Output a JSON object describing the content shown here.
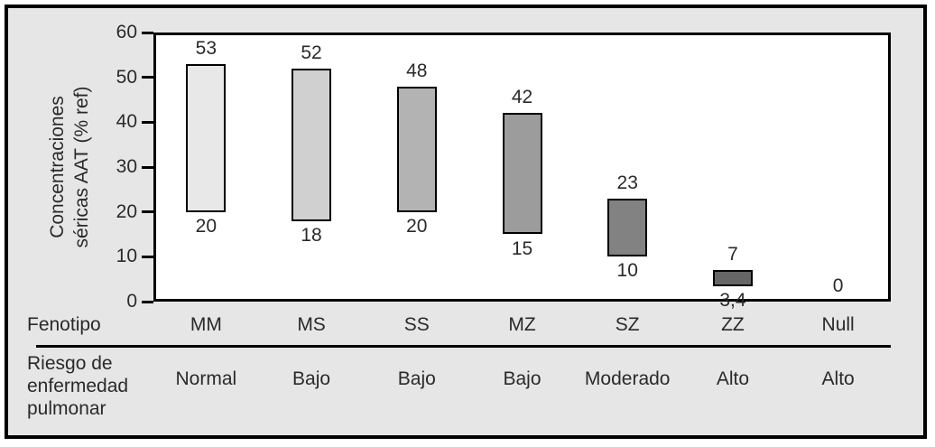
{
  "chart_data": {
    "type": "bar",
    "subtype": "floating_range_bars",
    "title": "",
    "ylabel": "Concentraciones séricas AAT (% ref)",
    "ylabel_lines": [
      "Concentraciones",
      "séricas AAT (% ref)"
    ],
    "ylim": [
      0,
      60
    ],
    "yticks": [
      "60",
      "50",
      "40",
      "30",
      "20",
      "10",
      "0"
    ],
    "grid": false,
    "legend": false,
    "categories": [
      "MM",
      "MS",
      "SS",
      "MZ",
      "SZ",
      "ZZ",
      "Null"
    ],
    "bars": [
      {
        "phenotype": "MM",
        "low": 20,
        "high": 53,
        "low_label": "20",
        "high_label": "53",
        "fill": "#e8e8e8",
        "risk": "Normal"
      },
      {
        "phenotype": "MS",
        "low": 18,
        "high": 52,
        "low_label": "18",
        "high_label": "52",
        "fill": "#d0d0d0",
        "risk": "Bajo"
      },
      {
        "phenotype": "SS",
        "low": 20,
        "high": 48,
        "low_label": "20",
        "high_label": "48",
        "fill": "#b3b3b3",
        "risk": "Bajo"
      },
      {
        "phenotype": "MZ",
        "low": 15,
        "high": 42,
        "low_label": "15",
        "high_label": "42",
        "fill": "#9c9c9c",
        "risk": "Bajo"
      },
      {
        "phenotype": "SZ",
        "low": 10,
        "high": 23,
        "low_label": "10",
        "high_label": "23",
        "fill": "#828282",
        "risk": "Moderado"
      },
      {
        "phenotype": "ZZ",
        "low": 3.4,
        "high": 7,
        "low_label": "3,4",
        "high_label": "7",
        "fill": "#666666",
        "risk": "Alto"
      },
      {
        "phenotype": "Null",
        "low": 0,
        "high": 0,
        "value_label": "0",
        "fill": null,
        "risk": "Alto"
      }
    ],
    "row_labels": {
      "fenotipo": "Fenotipo",
      "riesgo": "Riesgo de enfermedad pulmonar"
    },
    "colors": {
      "background": "#e6e6e6",
      "plot_background": "#ffffff",
      "bar_border": "#000000",
      "axis": "#000000",
      "text": "#2a2a2a"
    }
  }
}
